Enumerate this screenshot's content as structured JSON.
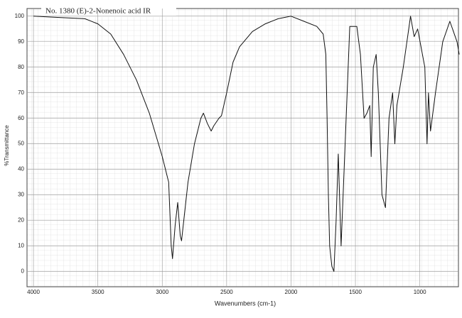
{
  "chart_data": {
    "type": "line",
    "title": "No. 1380 (E)-2-Nonenoic acid IR",
    "x_label": "Wavenumbers (cm-1)",
    "y_label": "%Transmittance",
    "x": [
      4000,
      3800,
      3600,
      3500,
      3400,
      3300,
      3200,
      3100,
      3000,
      2950,
      2930,
      2920,
      2900,
      2880,
      2860,
      2850,
      2800,
      2750,
      2700,
      2680,
      2650,
      2620,
      2600,
      2560,
      2540,
      2500,
      2450,
      2400,
      2300,
      2200,
      2100,
      2000,
      1900,
      1800,
      1750,
      1730,
      1720,
      1710,
      1700,
      1683,
      1667,
      1650,
      1633,
      1611,
      1572,
      1544,
      1489,
      1461,
      1433,
      1411,
      1389,
      1378,
      1361,
      1339,
      1322,
      1294,
      1267,
      1239,
      1211,
      1194,
      1178,
      1128,
      1072,
      1044,
      1017,
      961,
      944,
      933,
      917,
      878,
      822,
      767,
      711,
      694
    ],
    "series": [
      {
        "name": "(E)-2-Nonenoic acid",
        "color": "#111111",
        "values": [
          100,
          99.5,
          99,
          97,
          93,
          85,
          75,
          62,
          45,
          35,
          10,
          5,
          18,
          27,
          14,
          12,
          35,
          50,
          60,
          62,
          58,
          55,
          57,
          60,
          61,
          70,
          82,
          88,
          94,
          97,
          99,
          100,
          98,
          96,
          93,
          85,
          60,
          30,
          10,
          2,
          0,
          20,
          46,
          10,
          60,
          96,
          96,
          85,
          60,
          62,
          65,
          45,
          80,
          85,
          70,
          30,
          25,
          60,
          70,
          50,
          65,
          80,
          100,
          92,
          95,
          80,
          50,
          70,
          55,
          70,
          90,
          98,
          90,
          85
        ]
      }
    ],
    "xlim": [
      4050,
      700
    ],
    "ylim": [
      -6,
      103
    ],
    "xticks": [
      4000,
      3500,
      3000,
      2500,
      2000,
      1500,
      1000
    ],
    "yticks": [
      0,
      10,
      20,
      30,
      40,
      50,
      60,
      70,
      80,
      90,
      100
    ],
    "grid": true
  }
}
